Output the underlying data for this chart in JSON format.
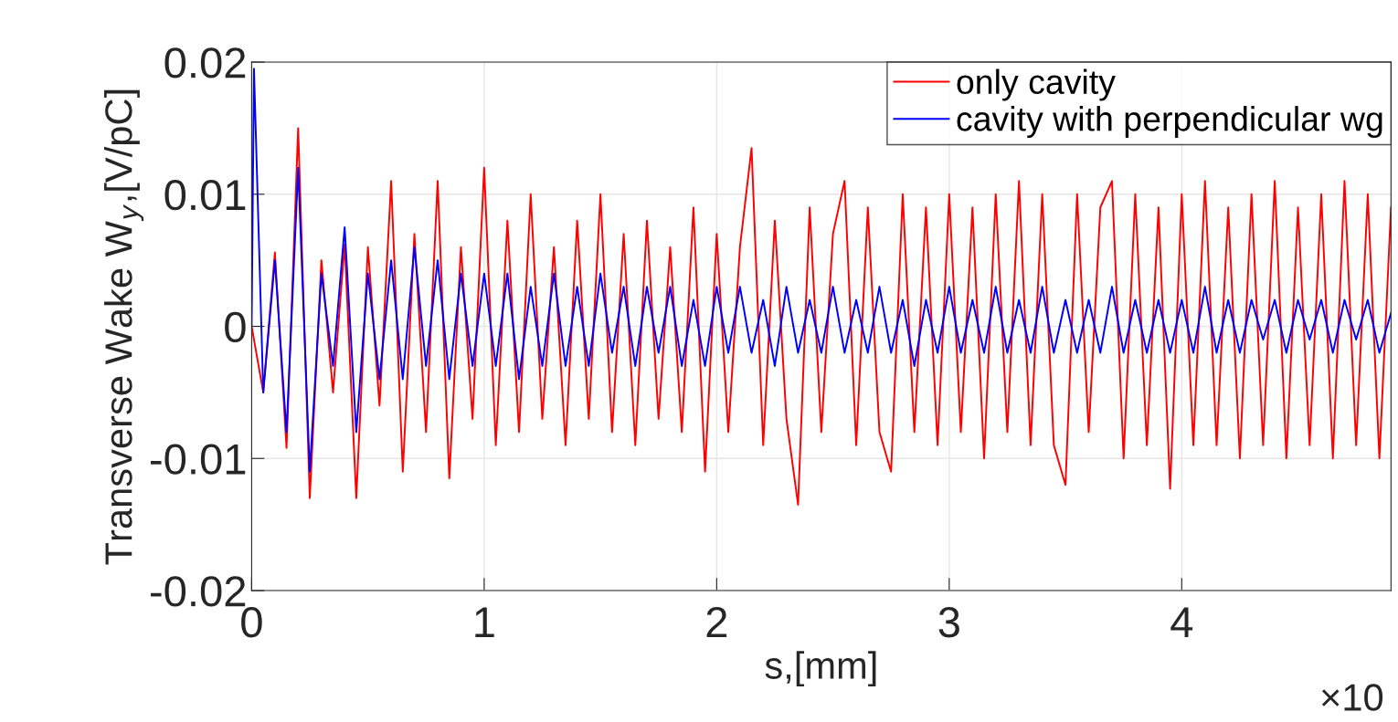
{
  "chart_data": {
    "type": "line",
    "xlabel": "s,[mm]",
    "ylabel": "Transverse Wake W$_{y}$,[V/pC]",
    "annotations": [
      "×10"
    ],
    "xlim": [
      0,
      4.9
    ],
    "xticks": [
      0,
      1,
      2,
      3,
      4
    ],
    "ylim": [
      -0.02,
      0.02
    ],
    "yticks": [
      -0.02,
      -0.01,
      0,
      0.01,
      0.02
    ],
    "grid": true,
    "legend": "top right",
    "line_style": "solid",
    "marker": "none",
    "series": [
      {
        "name": "only cavity",
        "color": "#ff0000",
        "x": [
          0,
          0.05,
          0.1,
          0.15,
          0.2,
          0.25,
          0.3,
          0.35,
          0.4,
          0.45,
          0.5,
          0.55,
          0.6,
          0.65,
          0.7,
          0.75,
          0.8,
          0.85,
          0.9,
          0.95,
          1.0,
          1.05,
          1.1,
          1.15,
          1.2,
          1.25,
          1.3,
          1.35,
          1.4,
          1.45,
          1.5,
          1.55,
          1.6,
          1.65,
          1.7,
          1.75,
          1.8,
          1.85,
          1.9,
          1.95,
          2.0,
          2.05,
          2.1,
          2.15,
          2.2,
          2.25,
          2.3,
          2.35,
          2.4,
          2.45,
          2.5,
          2.55,
          2.6,
          2.65,
          2.7,
          2.75,
          2.8,
          2.85,
          2.9,
          2.95,
          3.0,
          3.05,
          3.1,
          3.15,
          3.2,
          3.25,
          3.3,
          3.35,
          3.4,
          3.45,
          3.5,
          3.55,
          3.6,
          3.65,
          3.7,
          3.75,
          3.8,
          3.85,
          3.9,
          3.95,
          4.0,
          4.05,
          4.1,
          4.15,
          4.2,
          4.25,
          4.3,
          4.35,
          4.4,
          4.45,
          4.5,
          4.55,
          4.6,
          4.65,
          4.7,
          4.75,
          4.8,
          4.85,
          4.9
        ],
        "values": [
          0,
          -0.005,
          0.0056,
          -0.0092,
          0.015,
          -0.013,
          0.005,
          -0.005,
          0.0062,
          -0.013,
          0.006,
          -0.006,
          0.011,
          -0.011,
          0.007,
          -0.008,
          0.011,
          -0.0115,
          0.006,
          -0.007,
          0.012,
          -0.009,
          0.008,
          -0.008,
          0.01,
          -0.007,
          0.006,
          -0.009,
          0.008,
          -0.007,
          0.01,
          -0.008,
          0.007,
          -0.009,
          0.008,
          -0.007,
          0.006,
          -0.008,
          0.009,
          -0.011,
          0.007,
          -0.008,
          0.006,
          0.0135,
          -0.009,
          0.008,
          -0.007,
          -0.0135,
          0.009,
          -0.008,
          0.007,
          0.011,
          -0.009,
          0.009,
          -0.008,
          -0.011,
          0.01,
          -0.008,
          0.009,
          -0.009,
          0.01,
          -0.008,
          0.009,
          -0.01,
          0.01,
          -0.008,
          0.011,
          -0.009,
          0.01,
          -0.009,
          -0.012,
          0.01,
          -0.008,
          0.009,
          0.011,
          -0.01,
          0.01,
          -0.009,
          0.009,
          -0.0123,
          0.01,
          -0.009,
          0.011,
          -0.009,
          0.009,
          -0.01,
          0.01,
          -0.009,
          0.011,
          -0.01,
          0.009,
          -0.009,
          0.01,
          -0.01,
          0.011,
          -0.009,
          0.01,
          -0.01,
          0.009
        ]
      },
      {
        "name": "cavity with perpendicular wg",
        "color": "#0000ff",
        "x": [
          0,
          0.01,
          0.05,
          0.1,
          0.15,
          0.2,
          0.25,
          0.3,
          0.35,
          0.4,
          0.45,
          0.5,
          0.55,
          0.6,
          0.65,
          0.7,
          0.75,
          0.8,
          0.85,
          0.9,
          0.95,
          1.0,
          1.05,
          1.1,
          1.15,
          1.2,
          1.25,
          1.3,
          1.35,
          1.4,
          1.45,
          1.5,
          1.55,
          1.6,
          1.65,
          1.7,
          1.75,
          1.8,
          1.85,
          1.9,
          1.95,
          2.0,
          2.05,
          2.1,
          2.15,
          2.2,
          2.25,
          2.3,
          2.35,
          2.4,
          2.45,
          2.5,
          2.55,
          2.6,
          2.65,
          2.7,
          2.75,
          2.8,
          2.85,
          2.9,
          2.95,
          3.0,
          3.05,
          3.1,
          3.15,
          3.2,
          3.25,
          3.3,
          3.35,
          3.4,
          3.45,
          3.5,
          3.55,
          3.6,
          3.65,
          3.7,
          3.75,
          3.8,
          3.85,
          3.9,
          3.95,
          4.0,
          4.05,
          4.1,
          4.15,
          4.2,
          4.25,
          4.3,
          4.35,
          4.4,
          4.45,
          4.5,
          4.55,
          4.6,
          4.65,
          4.7,
          4.75,
          4.8,
          4.85,
          4.9
        ],
        "values": [
          0,
          0.0195,
          -0.005,
          0.005,
          -0.008,
          0.012,
          -0.011,
          0.004,
          -0.003,
          0.0075,
          -0.008,
          0.004,
          -0.004,
          0.005,
          -0.004,
          0.006,
          -0.003,
          0.005,
          -0.004,
          0.004,
          -0.003,
          0.004,
          -0.003,
          0.004,
          -0.004,
          0.003,
          -0.003,
          0.004,
          -0.003,
          0.003,
          -0.003,
          0.004,
          -0.002,
          0.003,
          -0.003,
          0.003,
          -0.002,
          0.003,
          -0.003,
          0.002,
          -0.003,
          0.003,
          -0.002,
          0.003,
          -0.002,
          0.002,
          -0.003,
          0.003,
          -0.002,
          0.002,
          -0.002,
          0.003,
          -0.002,
          0.002,
          -0.002,
          0.003,
          -0.002,
          0.002,
          -0.003,
          0.002,
          -0.002,
          0.003,
          -0.002,
          0.002,
          -0.002,
          0.003,
          -0.002,
          0.002,
          -0.002,
          0.003,
          -0.002,
          0.002,
          -0.002,
          0.002,
          -0.002,
          0.003,
          -0.002,
          0.002,
          -0.002,
          0.002,
          -0.002,
          0.002,
          -0.002,
          0.003,
          -0.002,
          0.002,
          -0.002,
          0.002,
          -0.001,
          0.002,
          -0.002,
          0.002,
          -0.001,
          0.002,
          -0.002,
          0.002,
          -0.001,
          0.002,
          -0.002,
          0.001
        ]
      }
    ]
  }
}
